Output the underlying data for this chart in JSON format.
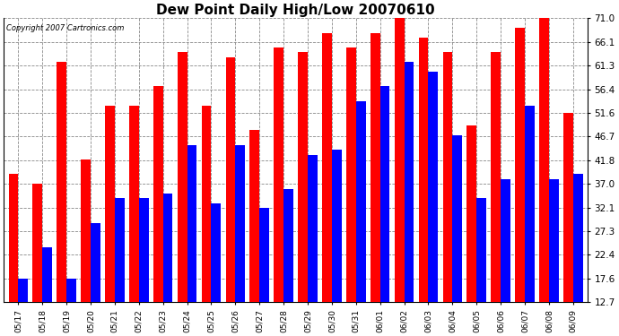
{
  "title": "Dew Point Daily High/Low 20070610",
  "copyright": "Copyright 2007 Cartronics.com",
  "dates": [
    "05/17",
    "05/18",
    "05/19",
    "05/20",
    "05/21",
    "05/22",
    "05/23",
    "05/24",
    "05/25",
    "05/26",
    "05/27",
    "05/28",
    "05/29",
    "05/30",
    "05/31",
    "06/01",
    "06/02",
    "06/03",
    "06/04",
    "06/05",
    "06/06",
    "06/07",
    "06/08",
    "06/09"
  ],
  "highs": [
    39.0,
    37.0,
    62.0,
    42.0,
    53.0,
    53.0,
    57.0,
    64.0,
    53.0,
    63.0,
    48.0,
    65.0,
    64.0,
    68.0,
    65.0,
    68.0,
    71.0,
    67.0,
    64.0,
    49.0,
    64.0,
    69.0,
    71.0,
    51.6
  ],
  "lows": [
    17.6,
    24.0,
    17.6,
    29.0,
    34.0,
    34.0,
    35.0,
    45.0,
    33.0,
    45.0,
    32.0,
    36.0,
    43.0,
    44.0,
    54.0,
    57.0,
    62.0,
    60.0,
    47.0,
    34.0,
    38.0,
    53.0,
    38.0,
    39.0
  ],
  "ylim_min": 12.7,
  "ylim_max": 71.0,
  "yticks": [
    12.7,
    17.6,
    22.4,
    27.3,
    32.1,
    37.0,
    41.8,
    46.7,
    51.6,
    56.4,
    61.3,
    66.1,
    71.0
  ],
  "high_color": "#ff0000",
  "low_color": "#0000ff",
  "background_color": "#ffffff",
  "plot_bg_color": "#ffffff",
  "grid_color": "#888888",
  "title_fontsize": 11,
  "bar_width": 0.4
}
